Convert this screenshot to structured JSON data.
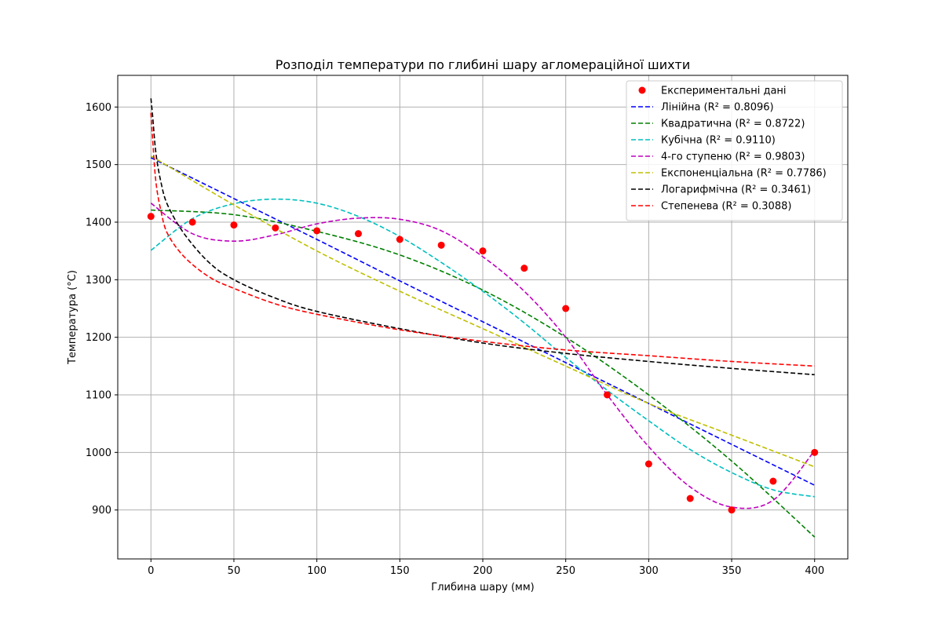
{
  "chart_data": {
    "type": "scatter",
    "title": "Розподіл температури по глибині шару агломераційної шихти",
    "xlabel": "Глибина шару (мм)",
    "ylabel": "Температура (°C)",
    "xlim": [
      -20,
      420
    ],
    "ylim": [
      815,
      1655
    ],
    "xticks": [
      0,
      50,
      100,
      150,
      200,
      250,
      300,
      350,
      400
    ],
    "yticks": [
      900,
      1000,
      1100,
      1200,
      1300,
      1400,
      1500,
      1600
    ],
    "grid": true,
    "legend_position": "top-right",
    "scatter": {
      "name": "Експериментальні дані",
      "color": "#ff0000",
      "x": [
        0,
        25,
        50,
        75,
        100,
        125,
        150,
        175,
        200,
        225,
        250,
        275,
        300,
        325,
        350,
        375,
        400
      ],
      "y": [
        1410,
        1400,
        1395,
        1390,
        1385,
        1380,
        1370,
        1360,
        1350,
        1320,
        1250,
        1100,
        980,
        920,
        900,
        950,
        1000
      ]
    },
    "series": [
      {
        "name": "Лінійна (R² = 0.8096)",
        "color": "#0000ff",
        "x": [
          0,
          50,
          100,
          150,
          200,
          250,
          300,
          350,
          400
        ],
        "y": [
          1512,
          1441,
          1370,
          1298,
          1227,
          1156,
          1085,
          1014,
          943
        ]
      },
      {
        "name": "Квадратична (R² = 0.8722)",
        "color": "#008000",
        "x": [
          0,
          50,
          100,
          150,
          200,
          250,
          300,
          350,
          400
        ],
        "y": [
          1421,
          1413,
          1384,
          1343,
          1282,
          1200,
          1100,
          985,
          853
        ]
      },
      {
        "name": "Кубічна (R² = 0.9110)",
        "color": "#00bfbf",
        "x": [
          0,
          25,
          50,
          75,
          100,
          125,
          150,
          175,
          200,
          225,
          250,
          275,
          300,
          325,
          350,
          375,
          400
        ],
        "y": [
          1351,
          1406,
          1432,
          1440,
          1433,
          1410,
          1375,
          1330,
          1280,
          1225,
          1165,
          1108,
          1055,
          1005,
          965,
          935,
          923
        ]
      },
      {
        "name": "4-го ступеню (R² = 0.9803)",
        "color": "#bf00bf",
        "x": [
          0,
          25,
          50,
          75,
          100,
          125,
          150,
          175,
          200,
          225,
          250,
          275,
          300,
          325,
          350,
          375,
          400
        ],
        "y": [
          1433,
          1380,
          1367,
          1378,
          1397,
          1407,
          1405,
          1385,
          1340,
          1280,
          1200,
          1100,
          1010,
          940,
          905,
          917,
          1003
        ]
      },
      {
        "name": "Експоненціальна (R² = 0.7786)",
        "color": "#bfbf00",
        "x": [
          0,
          50,
          100,
          150,
          200,
          250,
          300,
          350,
          400
        ],
        "y": [
          1515,
          1430,
          1350,
          1280,
          1215,
          1150,
          1085,
          1030,
          975
        ]
      },
      {
        "name": "Логарифмічна (R² = 0.3461)",
        "color": "#000000",
        "x": [
          0,
          1,
          3,
          6,
          10,
          20,
          35,
          50,
          75,
          100,
          150,
          200,
          250,
          300,
          350,
          400
        ],
        "y": [
          1615,
          1585,
          1520,
          1470,
          1430,
          1380,
          1330,
          1300,
          1268,
          1245,
          1215,
          1190,
          1172,
          1158,
          1146,
          1135
        ]
      },
      {
        "name": "Степенева (R² = 0.3088)",
        "color": "#ff0000",
        "x": [
          0,
          1,
          3,
          6,
          10,
          20,
          35,
          50,
          75,
          100,
          150,
          200,
          250,
          300,
          350,
          400
        ],
        "y": [
          1590,
          1545,
          1470,
          1420,
          1380,
          1340,
          1305,
          1285,
          1258,
          1240,
          1213,
          1193,
          1178,
          1168,
          1158,
          1150
        ]
      }
    ]
  }
}
